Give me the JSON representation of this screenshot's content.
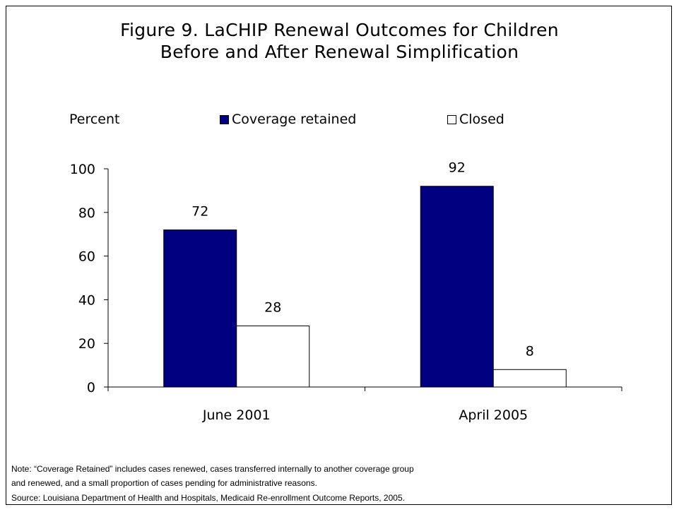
{
  "chart_data": {
    "type": "bar",
    "title": "Figure 9. LaCHIP Renewal Outcomes for Children",
    "subtitle": "Before and After Renewal Simplification",
    "ylabel": "Percent",
    "categories": [
      "June 2001",
      "April 2005"
    ],
    "series": [
      {
        "name": "Coverage retained",
        "values": [
          72,
          92
        ],
        "color": "#000080"
      },
      {
        "name": "Closed",
        "values": [
          28,
          8
        ],
        "color": "#ffffff"
      }
    ],
    "ylim": [
      0,
      100
    ],
    "yticks": [
      0,
      20,
      40,
      60,
      80,
      100
    ],
    "grid": false,
    "legend_position": "top"
  },
  "notes": {
    "line1": "Note: “Coverage Retained” includes cases renewed, cases transferred internally to another coverage group",
    "line2": "and renewed, and a small proportion of cases pending for administrative reasons.",
    "source": "Source: Louisiana Department of Health and Hospitals, Medicaid Re-enrollment Outcome Reports, 2005."
  }
}
